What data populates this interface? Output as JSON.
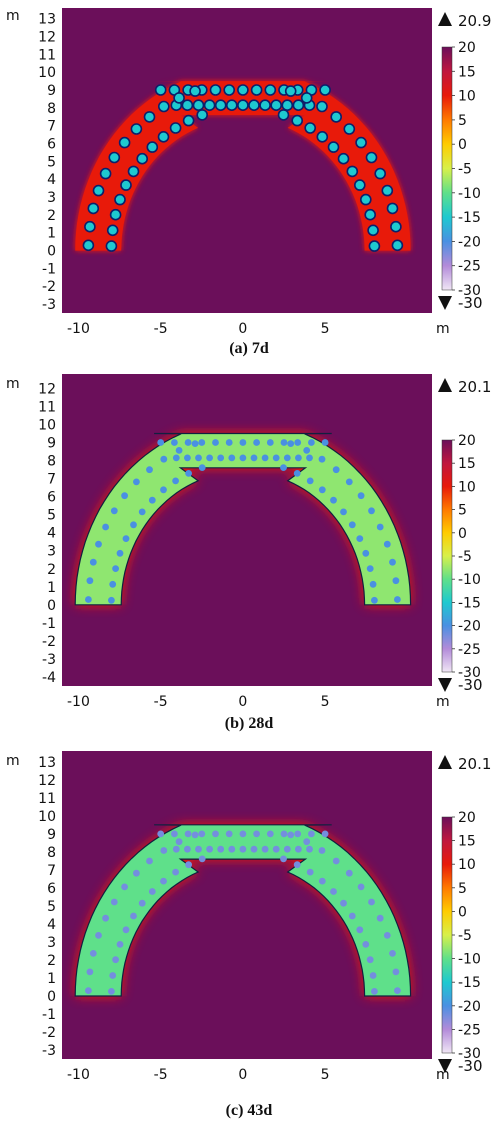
{
  "chart_data": [
    {
      "type": "heatmap",
      "caption": "(a) 7d",
      "axis_unit": "m",
      "x_ticks": [
        "-10",
        "-5",
        "0",
        "5"
      ],
      "y_ticks": [
        "13",
        "12",
        "11",
        "10",
        "9",
        "8",
        "7",
        "6",
        "5",
        "4",
        "3",
        "2",
        "1",
        "0",
        "-1",
        "-2",
        "-3"
      ],
      "xlim": [
        -11,
        11.5
      ],
      "ylim": [
        -3.5,
        13.6
      ],
      "colorbar": {
        "ticks": [
          "20",
          "15",
          "10",
          "5",
          "0",
          "-5",
          "-10",
          "-15",
          "-20",
          "-25",
          "-30"
        ],
        "range": [
          -30,
          20
        ]
      },
      "max_label": "20.9",
      "min_label": "-30",
      "max_value": 20.9,
      "min_value": -30,
      "background_value": 20,
      "zone_value": 10,
      "pile_value": -15,
      "structure": {
        "rows": 2,
        "row_offset": 0.85,
        "top_y": 9,
        "top_left_x": -5,
        "top_right_x": 5,
        "arch_radius": 9.2
      }
    },
    {
      "type": "heatmap",
      "caption": "(b) 28d",
      "axis_unit": "m",
      "x_ticks": [
        "-10",
        "-5",
        "0",
        "5"
      ],
      "y_ticks": [
        "12",
        "11",
        "10",
        "9",
        "8",
        "7",
        "6",
        "5",
        "4",
        "3",
        "2",
        "1",
        "0",
        "-1",
        "-2",
        "-3",
        "-4"
      ],
      "xlim": [
        -11,
        11.5
      ],
      "ylim": [
        -4.5,
        12.8
      ],
      "colorbar": {
        "ticks": [
          "20",
          "15",
          "10",
          "5",
          "0",
          "-5",
          "-10",
          "-15",
          "-20",
          "-25",
          "-30"
        ],
        "range": [
          -30,
          20
        ]
      },
      "max_label": "20.1",
      "min_label": "-30",
      "max_value": 20.1,
      "min_value": -30,
      "background_value": 20,
      "zone_value": -8,
      "pile_value": -20,
      "structure": {
        "rows": 2,
        "row_offset": 0.85,
        "top_y": 9,
        "top_left_x": -5,
        "top_right_x": 5,
        "arch_radius": 9.2
      }
    },
    {
      "type": "heatmap",
      "caption": "(c) 43d",
      "axis_unit": "m",
      "x_ticks": [
        "-10",
        "-5",
        "0",
        "5"
      ],
      "y_ticks": [
        "13",
        "12",
        "11",
        "10",
        "9",
        "8",
        "7",
        "6",
        "5",
        "4",
        "3",
        "2",
        "1",
        "0",
        "-1",
        "-2",
        "-3"
      ],
      "xlim": [
        -11,
        11.5
      ],
      "ylim": [
        -3.5,
        13.6
      ],
      "colorbar": {
        "ticks": [
          "20",
          "15",
          "10",
          "5",
          "0",
          "-5",
          "-10",
          "-15",
          "-20",
          "-25",
          "-30"
        ],
        "range": [
          -30,
          20
        ]
      },
      "max_label": "20.1",
      "min_label": "-30",
      "max_value": 20.1,
      "min_value": -30,
      "background_value": 20,
      "zone_value": -10,
      "pile_value": -22,
      "structure": {
        "rows": 2,
        "row_offset": 0.85,
        "top_y": 9,
        "top_left_x": -5,
        "top_right_x": 5,
        "arch_radius": 9.2
      }
    }
  ],
  "colors": {
    "background": "#7d0f5b",
    "halo": "#ff1a00",
    "pile_dark": "#0c1f6b",
    "colorbar_stops": [
      "#f0e6f5",
      "#b38bd9",
      "#4a90e2",
      "#1ec9d0",
      "#5fe08a",
      "#d8f04a",
      "#ffcc00",
      "#ff7a00",
      "#e81a0a",
      "#c0173e",
      "#6b0f5a"
    ]
  }
}
